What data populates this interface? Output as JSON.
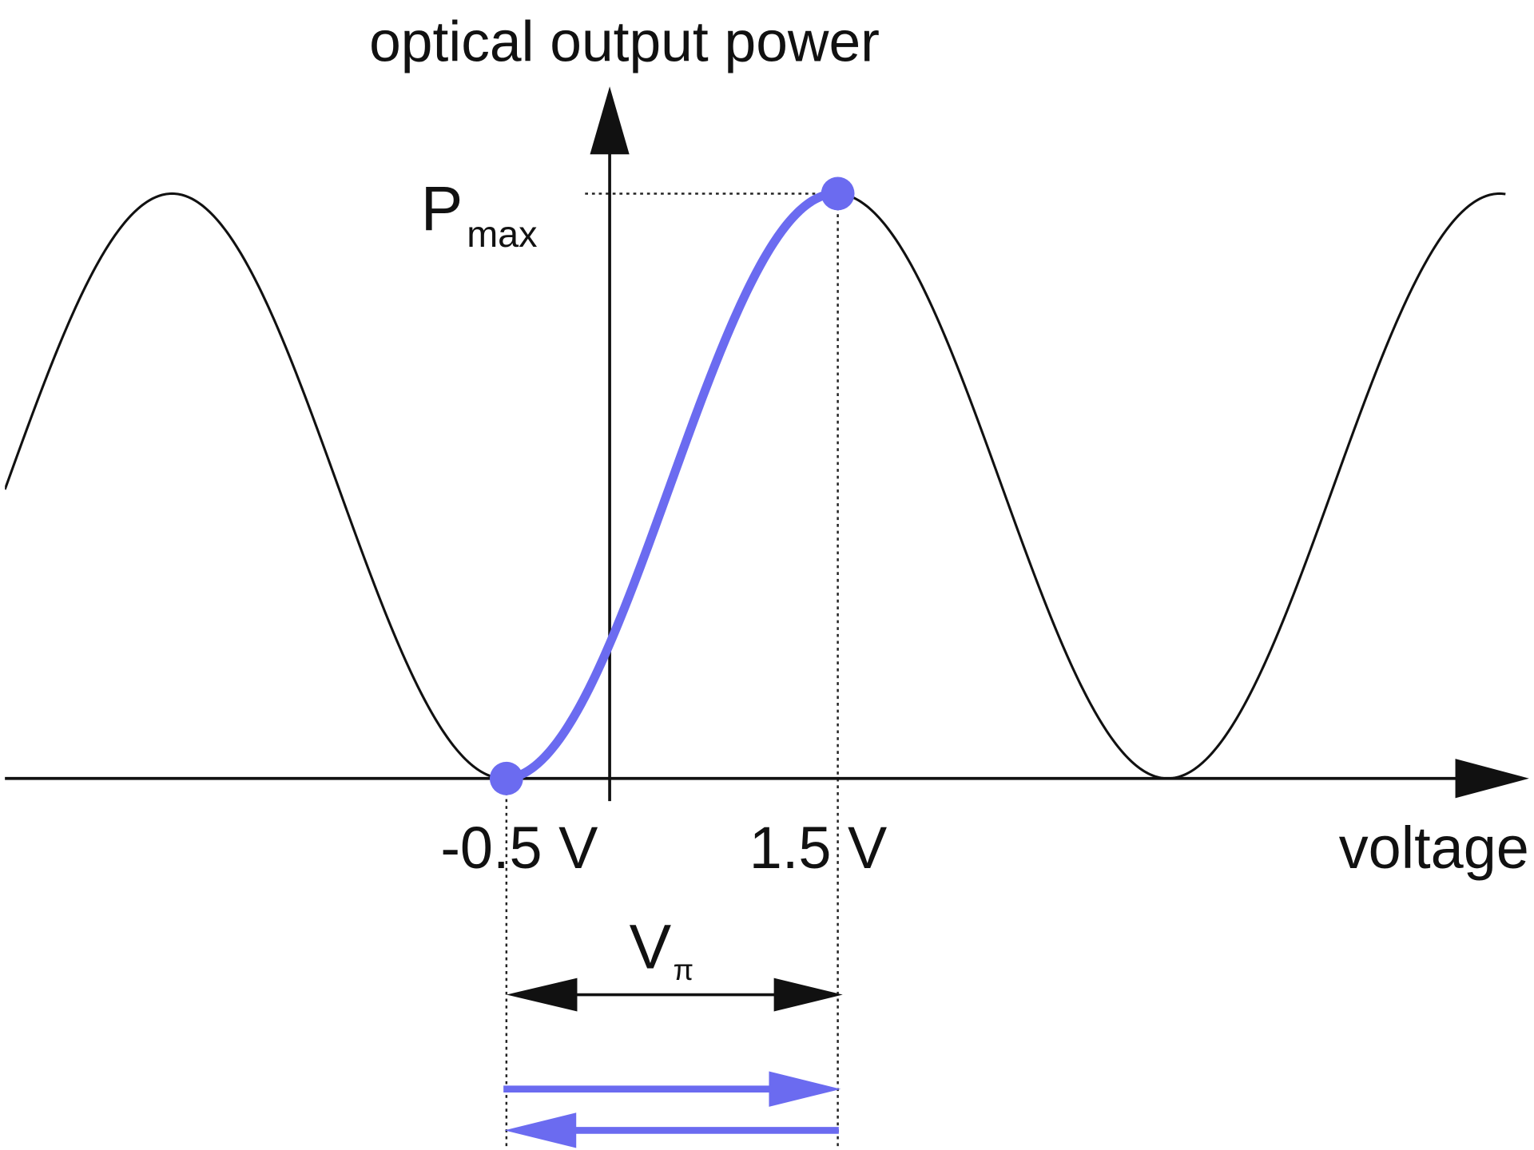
{
  "y_axis_label": "optical output power",
  "peak_label": {
    "symbol": "P",
    "subscript": "max"
  },
  "x_labels": [
    "-0.5 V",
    "1.5 V"
  ],
  "x_axis_label": "voltage",
  "span_label": {
    "symbol": "V",
    "subscript": "π"
  }
}
